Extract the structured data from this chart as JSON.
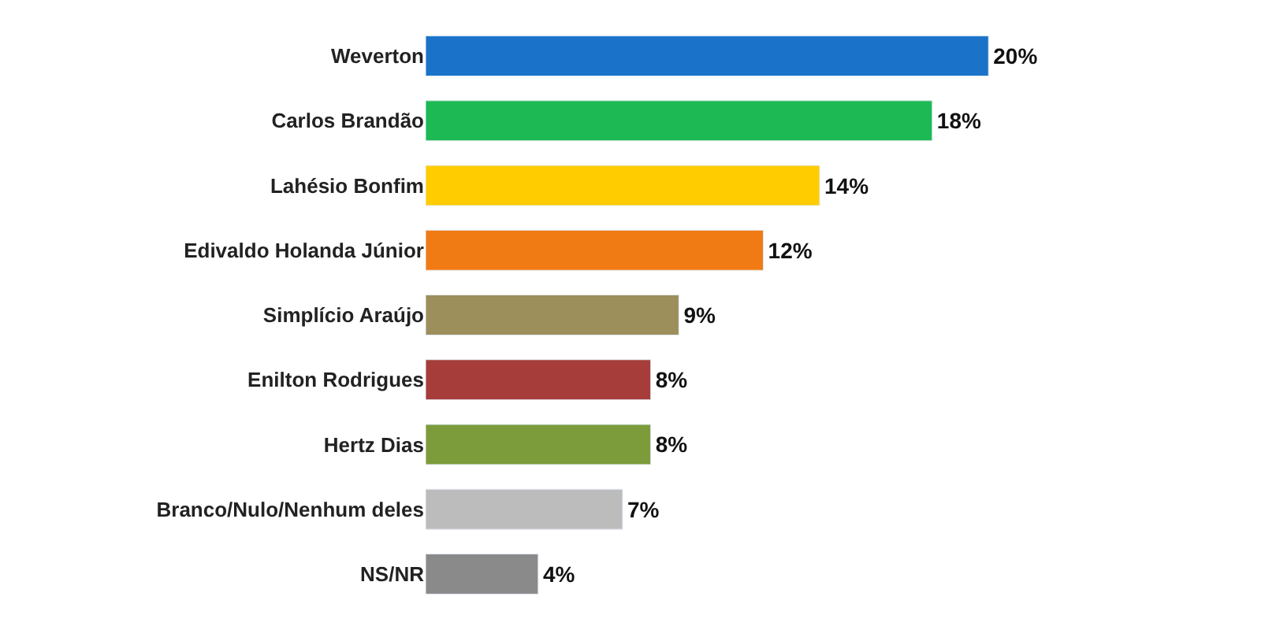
{
  "chart_data": {
    "type": "bar",
    "orientation": "horizontal",
    "categories": [
      "Weverton",
      "Carlos Brandão",
      "Lahésio Bonfim",
      "Edivaldo Holanda Júnior",
      "Simplício Araújo",
      "Enilton Rodrigues",
      "Hertz Dias",
      "Branco/Nulo/Nenhum deles",
      "NS/NR"
    ],
    "values": [
      20,
      18,
      14,
      12,
      9,
      8,
      8,
      7,
      4
    ],
    "value_labels": [
      "20%",
      "18%",
      "14%",
      "12%",
      "9%",
      "8%",
      "8%",
      "7%",
      "4%"
    ],
    "colors": [
      "#1a73c8",
      "#1db954",
      "#ffcc00",
      "#f07a14",
      "#9c8f5c",
      "#a63d3a",
      "#7c9c3c",
      "#bcbcbc",
      "#8a8a8a"
    ]
  }
}
